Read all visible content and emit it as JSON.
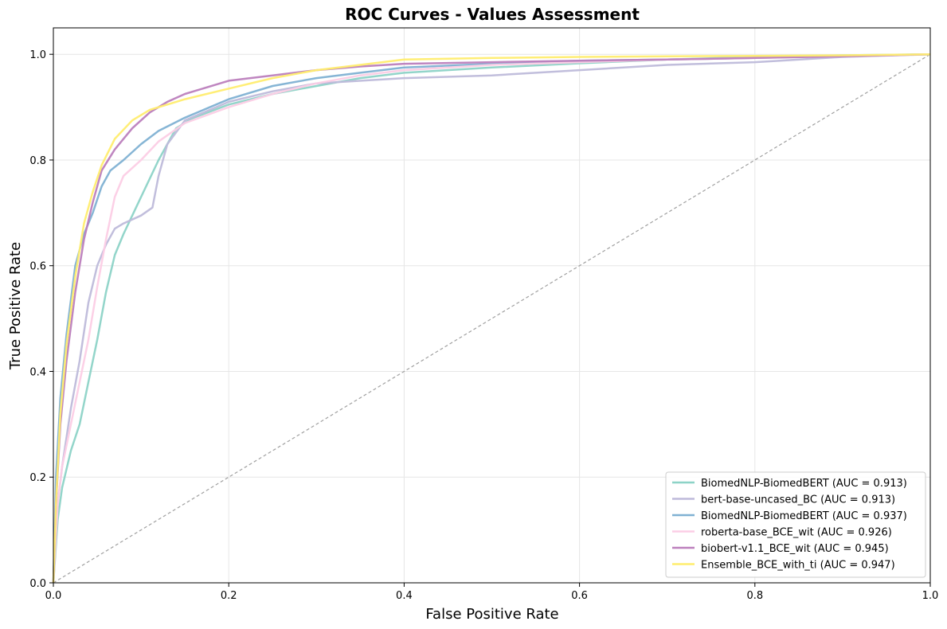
{
  "chart_data": {
    "type": "line",
    "title": "ROC Curves - Values Assessment",
    "xlabel": "False Positive Rate",
    "ylabel": "True Positive Rate",
    "xlim": [
      0,
      1
    ],
    "ylim": [
      0,
      1.05
    ],
    "x_ticks": [
      "0.0",
      "0.2",
      "0.4",
      "0.6",
      "0.8",
      "1.0"
    ],
    "y_ticks": [
      "0.0",
      "0.2",
      "0.4",
      "0.6",
      "0.8",
      "1.0"
    ],
    "grid": true,
    "legend_position": "lower-right",
    "series": [
      {
        "name": "BiomedNLP-BiomedBERT (AUC = 0.913)",
        "color": "#8dd3c7",
        "points": [
          [
            0,
            0
          ],
          [
            0.005,
            0.12
          ],
          [
            0.01,
            0.18
          ],
          [
            0.02,
            0.25
          ],
          [
            0.03,
            0.3
          ],
          [
            0.04,
            0.38
          ],
          [
            0.05,
            0.46
          ],
          [
            0.06,
            0.55
          ],
          [
            0.07,
            0.62
          ],
          [
            0.08,
            0.66
          ],
          [
            0.1,
            0.73
          ],
          [
            0.12,
            0.8
          ],
          [
            0.14,
            0.86
          ],
          [
            0.16,
            0.88
          ],
          [
            0.2,
            0.905
          ],
          [
            0.25,
            0.925
          ],
          [
            0.3,
            0.94
          ],
          [
            0.35,
            0.955
          ],
          [
            0.4,
            0.965
          ],
          [
            0.5,
            0.975
          ],
          [
            0.6,
            0.983
          ],
          [
            0.7,
            0.99
          ],
          [
            0.8,
            0.995
          ],
          [
            0.9,
            0.998
          ],
          [
            1,
            1
          ]
        ]
      },
      {
        "name": "bert-base-uncased_BC (AUC = 0.913)",
        "color": "#bebada",
        "points": [
          [
            0,
            0
          ],
          [
            0.005,
            0.15
          ],
          [
            0.01,
            0.22
          ],
          [
            0.02,
            0.33
          ],
          [
            0.03,
            0.42
          ],
          [
            0.04,
            0.53
          ],
          [
            0.05,
            0.6
          ],
          [
            0.06,
            0.64
          ],
          [
            0.07,
            0.67
          ],
          [
            0.08,
            0.68
          ],
          [
            0.1,
            0.695
          ],
          [
            0.113,
            0.71
          ],
          [
            0.12,
            0.77
          ],
          [
            0.13,
            0.83
          ],
          [
            0.15,
            0.875
          ],
          [
            0.2,
            0.91
          ],
          [
            0.25,
            0.93
          ],
          [
            0.3,
            0.945
          ],
          [
            0.4,
            0.955
          ],
          [
            0.5,
            0.96
          ],
          [
            0.6,
            0.97
          ],
          [
            0.7,
            0.98
          ],
          [
            0.8,
            0.985
          ],
          [
            0.9,
            0.995
          ],
          [
            1,
            1
          ]
        ]
      },
      {
        "name": "BiomedNLP-BiomedBERT (AUC = 0.937)",
        "color": "#80b1d3",
        "points": [
          [
            0,
            0
          ],
          [
            0.003,
            0.2
          ],
          [
            0.008,
            0.35
          ],
          [
            0.015,
            0.47
          ],
          [
            0.025,
            0.6
          ],
          [
            0.035,
            0.66
          ],
          [
            0.045,
            0.7
          ],
          [
            0.055,
            0.75
          ],
          [
            0.065,
            0.78
          ],
          [
            0.08,
            0.8
          ],
          [
            0.1,
            0.83
          ],
          [
            0.12,
            0.855
          ],
          [
            0.15,
            0.88
          ],
          [
            0.2,
            0.915
          ],
          [
            0.25,
            0.94
          ],
          [
            0.3,
            0.955
          ],
          [
            0.35,
            0.965
          ],
          [
            0.4,
            0.975
          ],
          [
            0.5,
            0.982
          ],
          [
            0.6,
            0.988
          ],
          [
            0.7,
            0.99
          ],
          [
            0.8,
            0.993
          ],
          [
            0.9,
            0.997
          ],
          [
            1,
            1
          ]
        ]
      },
      {
        "name": "roberta-base_BCE_wit (AUC = 0.926)",
        "color": "#fccde5",
        "points": [
          [
            0,
            0
          ],
          [
            0.005,
            0.15
          ],
          [
            0.01,
            0.22
          ],
          [
            0.02,
            0.3
          ],
          [
            0.03,
            0.38
          ],
          [
            0.04,
            0.46
          ],
          [
            0.05,
            0.56
          ],
          [
            0.06,
            0.65
          ],
          [
            0.07,
            0.73
          ],
          [
            0.08,
            0.77
          ],
          [
            0.1,
            0.8
          ],
          [
            0.12,
            0.835
          ],
          [
            0.15,
            0.87
          ],
          [
            0.2,
            0.9
          ],
          [
            0.25,
            0.925
          ],
          [
            0.3,
            0.945
          ],
          [
            0.35,
            0.96
          ],
          [
            0.4,
            0.97
          ],
          [
            0.5,
            0.98
          ],
          [
            0.6,
            0.985
          ],
          [
            0.7,
            0.99
          ],
          [
            0.8,
            0.993
          ],
          [
            0.9,
            0.996
          ],
          [
            1,
            1
          ]
        ]
      },
      {
        "name": "biobert-v1.1_BCE_wit (AUC = 0.945)",
        "color": "#bc80bd",
        "points": [
          [
            0,
            0
          ],
          [
            0.003,
            0.15
          ],
          [
            0.008,
            0.3
          ],
          [
            0.015,
            0.42
          ],
          [
            0.025,
            0.55
          ],
          [
            0.035,
            0.65
          ],
          [
            0.045,
            0.72
          ],
          [
            0.055,
            0.78
          ],
          [
            0.07,
            0.82
          ],
          [
            0.09,
            0.86
          ],
          [
            0.11,
            0.89
          ],
          [
            0.13,
            0.91
          ],
          [
            0.15,
            0.925
          ],
          [
            0.2,
            0.95
          ],
          [
            0.25,
            0.96
          ],
          [
            0.3,
            0.97
          ],
          [
            0.35,
            0.977
          ],
          [
            0.4,
            0.982
          ],
          [
            0.5,
            0.985
          ],
          [
            0.6,
            0.988
          ],
          [
            0.7,
            0.99
          ],
          [
            0.8,
            0.993
          ],
          [
            0.9,
            0.996
          ],
          [
            1,
            1
          ]
        ]
      },
      {
        "name": "Ensemble_BCE_with_ti (AUC = 0.947)",
        "color": "#ffed6f",
        "points": [
          [
            0,
            0
          ],
          [
            0.003,
            0.15
          ],
          [
            0.008,
            0.32
          ],
          [
            0.015,
            0.45
          ],
          [
            0.025,
            0.58
          ],
          [
            0.035,
            0.68
          ],
          [
            0.045,
            0.74
          ],
          [
            0.055,
            0.79
          ],
          [
            0.07,
            0.84
          ],
          [
            0.09,
            0.875
          ],
          [
            0.11,
            0.895
          ],
          [
            0.13,
            0.905
          ],
          [
            0.15,
            0.915
          ],
          [
            0.2,
            0.935
          ],
          [
            0.25,
            0.955
          ],
          [
            0.3,
            0.97
          ],
          [
            0.35,
            0.98
          ],
          [
            0.4,
            0.99
          ],
          [
            0.5,
            0.993
          ],
          [
            0.6,
            0.995
          ],
          [
            0.7,
            0.996
          ],
          [
            0.8,
            0.997
          ],
          [
            0.9,
            0.998
          ],
          [
            1,
            1
          ]
        ]
      }
    ],
    "reference_line": {
      "style": "dashed",
      "color": "#a0a0a0",
      "points": [
        [
          0,
          0
        ],
        [
          1,
          1
        ]
      ]
    }
  }
}
